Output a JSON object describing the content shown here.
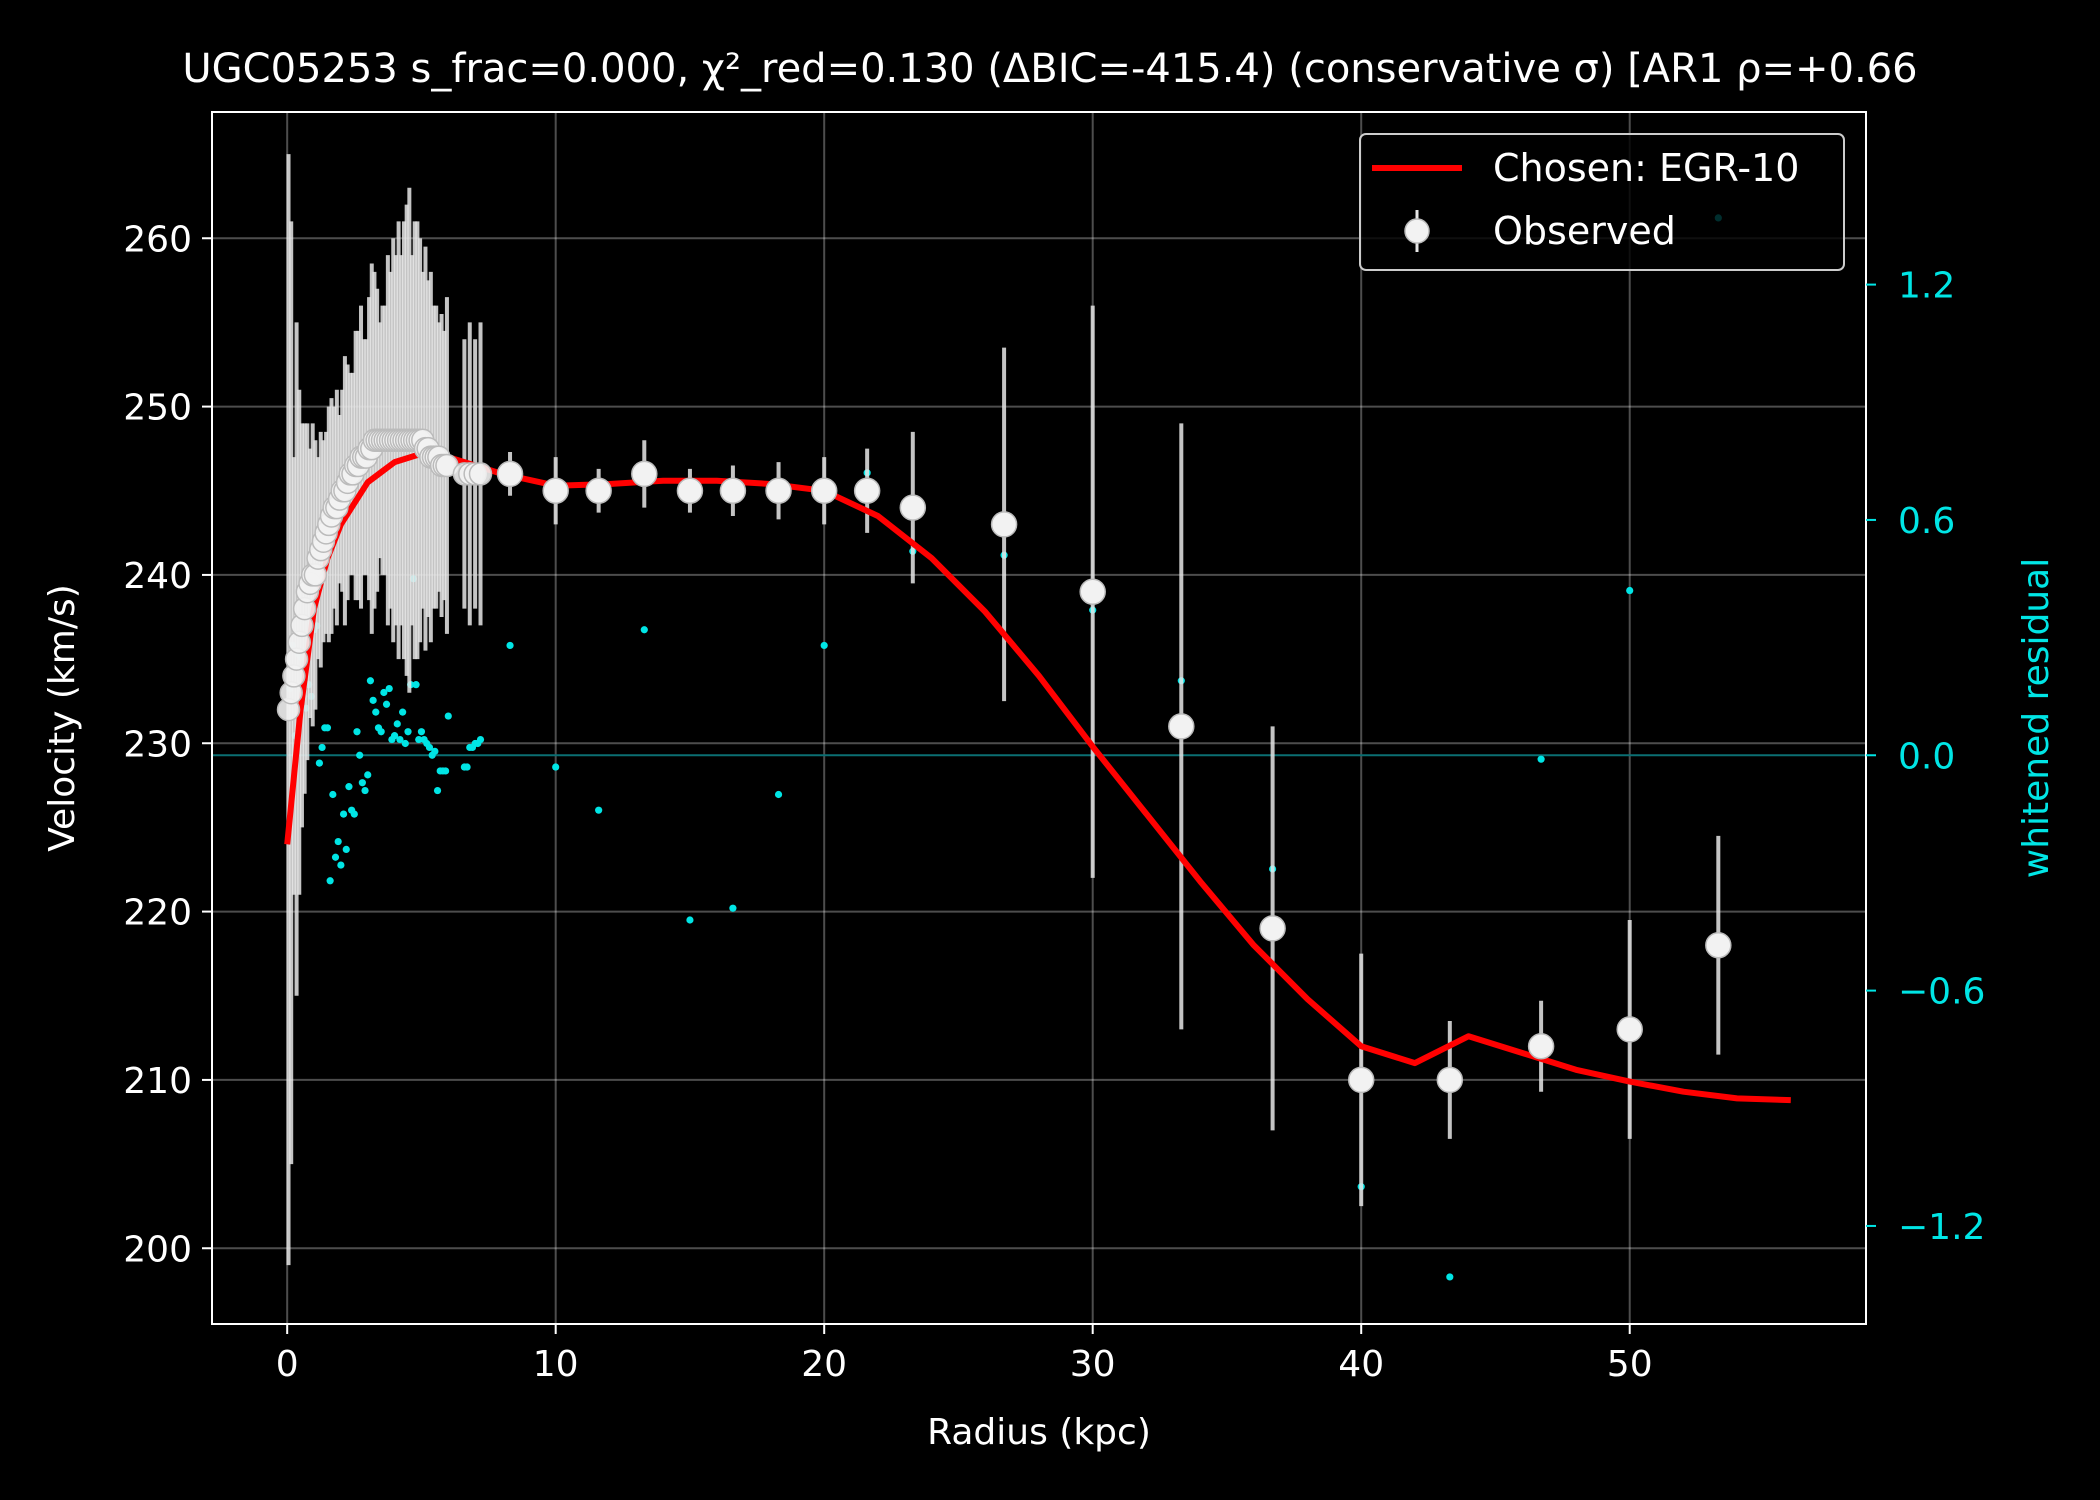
{
  "chart_data": {
    "type": "scatter",
    "title": "UGC05253  s_frac=0.000, χ²_red=0.130  (ΔBIC=-415.4) (conservative σ) [AR1 ρ=+0.66",
    "xlabel": "Radius (kpc)",
    "ylabel": "Velocity (km/s)",
    "y2label": "whitened residual",
    "xlim": [
      -2.8,
      58.8
    ],
    "ylim": [
      195.5,
      267.5
    ],
    "y2lim": [
      -1.45,
      1.64
    ],
    "xticks": [
      0,
      10,
      20,
      30,
      40,
      50
    ],
    "yticks": [
      200,
      210,
      220,
      230,
      240,
      250,
      260
    ],
    "y2ticks": [
      -1.2,
      -0.6,
      0.0,
      0.6,
      1.2
    ],
    "y2ticklabels": [
      "−1.2",
      "−0.6",
      "0.0",
      "0.6",
      "1.2"
    ],
    "grid": true,
    "legend": {
      "location": "top-right",
      "entries": [
        {
          "label": "Chosen: EGR-10",
          "kind": "line",
          "color": "#ff0000"
        },
        {
          "label": "Observed",
          "kind": "errorbar-marker",
          "color": "#ffffff"
        }
      ]
    },
    "colors": {
      "model": "#ff0000",
      "observed": "#ffffff",
      "residual": "#00e5e5",
      "zero_line": "#0b6f73"
    },
    "series": [
      {
        "name": "Chosen: EGR-10",
        "kind": "line",
        "x": [
          0,
          0.5,
          1,
          1.5,
          2,
          3,
          4,
          5,
          6,
          8,
          10,
          12,
          14,
          16,
          18,
          20,
          22,
          24,
          26,
          28,
          30,
          32,
          34,
          36,
          38,
          40,
          42,
          44,
          46,
          48,
          50,
          52,
          54,
          56
        ],
        "y": [
          224,
          232,
          238,
          241,
          243,
          245.5,
          246.7,
          247.2,
          247,
          246,
          245.3,
          245.4,
          245.6,
          245.6,
          245.4,
          245,
          243.5,
          241,
          237.8,
          234,
          229.8,
          225.8,
          221.8,
          218,
          214.8,
          212,
          211,
          212.6,
          211.6,
          210.6,
          209.9,
          209.3,
          208.9,
          208.8
        ]
      },
      {
        "name": "Observed",
        "kind": "errorbar",
        "x": [
          0.05,
          0.15,
          0.25,
          0.35,
          0.45,
          0.55,
          0.65,
          0.75,
          0.85,
          0.95,
          1.05,
          1.15,
          1.25,
          1.35,
          1.45,
          1.55,
          1.65,
          1.75,
          1.85,
          1.95,
          2.05,
          2.15,
          2.25,
          2.35,
          2.45,
          2.55,
          2.65,
          2.75,
          2.85,
          2.95,
          3.05,
          3.15,
          3.25,
          3.35,
          3.45,
          3.55,
          3.65,
          3.75,
          3.85,
          3.95,
          4.05,
          4.15,
          4.25,
          4.35,
          4.45,
          4.55,
          4.65,
          4.75,
          4.85,
          4.95,
          5.05,
          5.15,
          5.25,
          5.35,
          5.45,
          5.55,
          5.65,
          5.75,
          5.85,
          5.95,
          6.6,
          6.8,
          7.0,
          7.2,
          8.3,
          10.0,
          11.6,
          13.3,
          15.0,
          16.6,
          18.3,
          20.0,
          21.6,
          23.3,
          26.7,
          30.0,
          33.3,
          36.7,
          40.0,
          43.3,
          46.7,
          50.0,
          53.3
        ],
        "y": [
          232,
          233,
          234,
          235,
          236,
          237,
          238,
          239,
          239.5,
          240,
          240,
          241,
          241.5,
          242,
          242.5,
          243,
          243.5,
          244,
          244,
          244.5,
          245,
          245,
          245.5,
          246,
          246,
          246.5,
          246.5,
          247,
          247,
          247,
          247.5,
          247.5,
          248,
          248,
          248,
          248,
          248,
          248,
          248,
          248,
          248,
          248,
          248,
          248,
          248,
          248,
          248,
          248,
          248,
          248,
          248,
          247.5,
          247.5,
          247,
          247,
          247,
          247,
          246.5,
          246.5,
          246.5,
          246,
          246,
          246,
          246,
          246,
          245,
          245,
          246,
          245,
          245,
          245,
          245,
          245,
          244,
          243,
          239,
          231,
          219,
          210,
          210,
          212,
          213,
          218
        ],
        "yerr": [
          33,
          28,
          13,
          20,
          15,
          12,
          11,
          10,
          8,
          9,
          8,
          6,
          7,
          6,
          6,
          7,
          7,
          6,
          7,
          5,
          6,
          8,
          7,
          6,
          6,
          8,
          8,
          9,
          7,
          7,
          9,
          11,
          10,
          9,
          7,
          8,
          8,
          11,
          10,
          12,
          11,
          13,
          11,
          13,
          14,
          15,
          11,
          13,
          13,
          12,
          10,
          12,
          10,
          11,
          9,
          9,
          8,
          9,
          8,
          10,
          8,
          9,
          8,
          9,
          1.3,
          2,
          1.3,
          2,
          1.3,
          1.5,
          1.7,
          2,
          2.5,
          4.5,
          10.5,
          17,
          18,
          12,
          7.5,
          3.5,
          2.7,
          6.5,
          6.5
        ]
      },
      {
        "name": "whitened residual",
        "kind": "scatter",
        "axis": "right",
        "x": [
          0.1,
          0.2,
          0.3,
          0.4,
          0.5,
          0.6,
          0.7,
          0.8,
          0.9,
          1.0,
          1.1,
          1.2,
          1.3,
          1.4,
          1.5,
          1.6,
          1.7,
          1.8,
          1.9,
          2.0,
          2.1,
          2.2,
          2.3,
          2.4,
          2.5,
          2.6,
          2.7,
          2.8,
          2.9,
          3.0,
          3.1,
          3.2,
          3.3,
          3.4,
          3.5,
          3.6,
          3.7,
          3.8,
          3.9,
          4.0,
          4.1,
          4.2,
          4.3,
          4.4,
          4.5,
          4.6,
          4.7,
          4.8,
          4.9,
          5.0,
          5.1,
          5.2,
          5.3,
          5.4,
          5.5,
          5.6,
          5.7,
          5.8,
          5.9,
          6.0,
          6.6,
          6.7,
          6.8,
          6.9,
          7.0,
          7.1,
          7.2,
          8.3,
          10.0,
          11.6,
          13.3,
          15.0,
          16.6,
          18.3,
          20.0,
          21.6,
          23.3,
          26.7,
          30.0,
          33.3,
          36.7,
          40.0,
          43.3,
          46.7,
          50.0,
          53.3
        ],
        "y": [
          0.17,
          0.28,
          0.05,
          0.26,
          0.25,
          0.15,
          0.12,
          0.18,
          0.15,
          0.32,
          0.33,
          -0.02,
          0.02,
          0.07,
          0.07,
          -0.32,
          -0.1,
          -0.26,
          -0.22,
          -0.28,
          -0.15,
          -0.24,
          -0.08,
          -0.14,
          -0.15,
          0.06,
          0.0,
          -0.07,
          -0.09,
          -0.05,
          0.19,
          0.14,
          0.11,
          0.07,
          0.06,
          0.16,
          0.13,
          0.17,
          0.04,
          0.05,
          0.08,
          0.04,
          0.11,
          0.03,
          0.06,
          0.18,
          0.45,
          0.18,
          0.04,
          0.06,
          0.04,
          0.03,
          0.02,
          0.0,
          0.01,
          -0.09,
          -0.04,
          -0.04,
          -0.04,
          0.1,
          -0.03,
          -0.03,
          0.02,
          0.02,
          0.03,
          0.03,
          0.04,
          0.28,
          -0.03,
          -0.14,
          0.32,
          -0.42,
          -0.39,
          -0.1,
          0.28,
          0.72,
          0.52,
          0.51,
          0.37,
          0.19,
          -0.29,
          -1.1,
          -1.33,
          -0.01,
          0.42,
          1.37
        ]
      }
    ]
  }
}
